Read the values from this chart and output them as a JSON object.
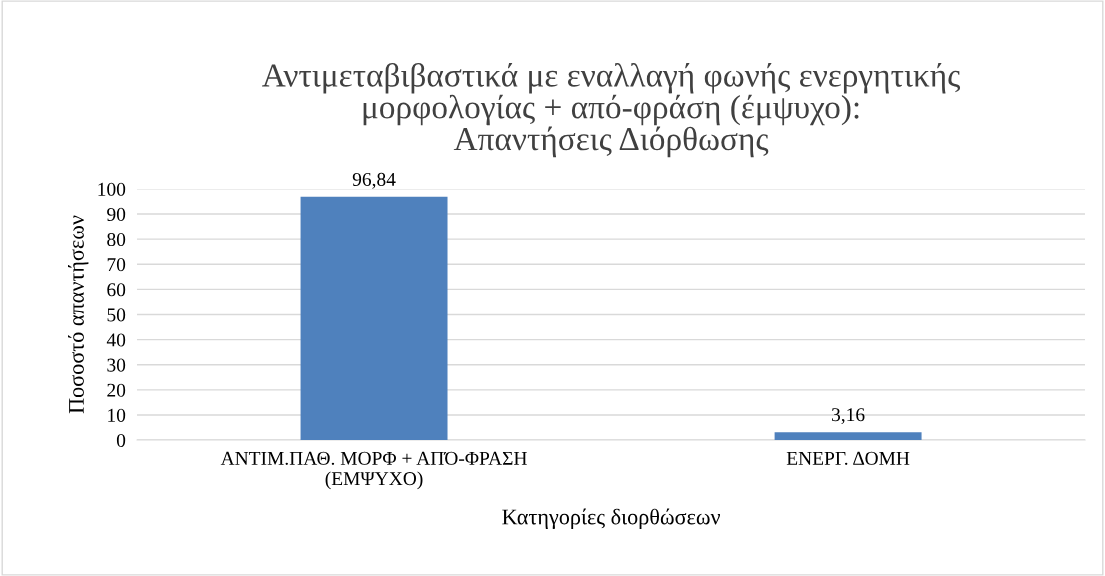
{
  "chart_data": {
    "type": "bar",
    "title": "Αντιμεταβιβαστικά με εναλλαγή φωνής ενεργητικής\nμορφολογίας + από-φράση (έμψυχο):\nΑπαντήσεις Διόρθωσης",
    "xlabel": "Κατηγορίες διορθώσεων",
    "ylabel": "Ποσοστό απαντήσεων",
    "categories": [
      "ΑΝΤΙΜ.ΠΑΘ. ΜΟΡΦ + ΑΠΌ-ΦΡΑΣΗ\n(ΕΜΨΥΧΟ)",
      "ΕΝΕΡΓ. ΔΟΜΗ"
    ],
    "values": [
      96.84,
      3.16
    ],
    "value_labels": [
      "96,84",
      "3,16"
    ],
    "color": "#4f81bd",
    "ylim": [
      0,
      100
    ],
    "yticks": [
      0,
      10,
      20,
      30,
      40,
      50,
      60,
      70,
      80,
      90,
      100
    ],
    "grid": "y",
    "legend": false
  }
}
